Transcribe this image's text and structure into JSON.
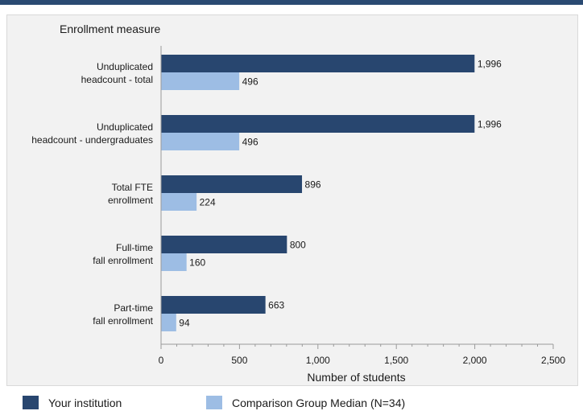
{
  "colors": {
    "institution": "#28466f",
    "median": "#9dbde4",
    "header_bar": "#2a4a72",
    "panel_bg": "#f2f2f2"
  },
  "legend": {
    "institution_label": "Your institution",
    "median_label": "Comparison Group Median (N=34)"
  },
  "chart_data": {
    "type": "bar",
    "orientation": "horizontal",
    "title": "",
    "category_axis_title": "Enrollment measure",
    "xlabel": "Number of students",
    "xlim": [
      0,
      2500
    ],
    "x_ticks": [
      0,
      500,
      1000,
      1500,
      2000,
      2500
    ],
    "x_tick_labels": [
      "0",
      "500",
      "1,000",
      "1,500",
      "2,000",
      "2,500"
    ],
    "categories": [
      [
        "Unduplicated",
        "headcount - total"
      ],
      [
        "Unduplicated",
        "headcount - undergraduates"
      ],
      [
        "Total FTE",
        "enrollment"
      ],
      [
        "Full-time",
        "fall enrollment"
      ],
      [
        "Part-time",
        "fall enrollment"
      ]
    ],
    "series": [
      {
        "name": "Your institution",
        "values": [
          1996,
          1996,
          896,
          800,
          663
        ],
        "labels": [
          "1,996",
          "1,996",
          "896",
          "800",
          "663"
        ]
      },
      {
        "name": "Comparison Group Median (N=34)",
        "values": [
          496,
          496,
          224,
          160,
          94
        ],
        "labels": [
          "496",
          "496",
          "224",
          "160",
          "94"
        ]
      }
    ],
    "grid": false,
    "legend_position": "bottom"
  }
}
